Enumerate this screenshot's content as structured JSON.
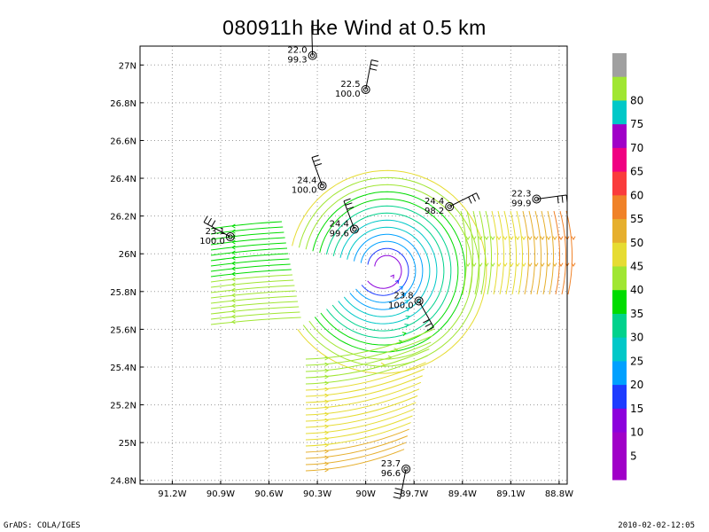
{
  "title": "080911h Ike Wind at 0.5 km",
  "footer": {
    "left": "GrADS: COLA/IGES",
    "right": "2010-02-02-12:05"
  },
  "map": {
    "lon_range": [
      -91.4,
      -88.75
    ],
    "lat_range": [
      24.78,
      27.1
    ],
    "x_ticks": [
      {
        "lon": -91.2,
        "label": "91.2W"
      },
      {
        "lon": -90.9,
        "label": "90.9W"
      },
      {
        "lon": -90.6,
        "label": "90.6W"
      },
      {
        "lon": -90.3,
        "label": "90.3W"
      },
      {
        "lon": -90.0,
        "label": "90W"
      },
      {
        "lon": -89.7,
        "label": "89.7W"
      },
      {
        "lon": -89.4,
        "label": "89.4W"
      },
      {
        "lon": -89.1,
        "label": "89.1W"
      },
      {
        "lon": -88.8,
        "label": "88.8W"
      }
    ],
    "y_ticks": [
      {
        "lat": 27.0,
        "label": "27N"
      },
      {
        "lat": 26.8,
        "label": "26.8N"
      },
      {
        "lat": 26.6,
        "label": "26.6N"
      },
      {
        "lat": 26.4,
        "label": "26.4N"
      },
      {
        "lat": 26.2,
        "label": "26.2N"
      },
      {
        "lat": 26.0,
        "label": "26N"
      },
      {
        "lat": 25.8,
        "label": "25.8N"
      },
      {
        "lat": 25.6,
        "label": "25.6N"
      },
      {
        "lat": 25.4,
        "label": "25.4N"
      },
      {
        "lat": 25.2,
        "label": "25.2N"
      },
      {
        "lat": 25.0,
        "label": "25N"
      },
      {
        "lat": 24.8,
        "label": "24.8N"
      }
    ],
    "storm_center": {
      "lon": -89.88,
      "lat": 25.92
    },
    "stations": [
      {
        "lon": -90.33,
        "lat": 27.05,
        "temp": "22.0",
        "pres": "99.3"
      },
      {
        "lon": -90.0,
        "lat": 26.87,
        "temp": "22.5",
        "pres": "100.0"
      },
      {
        "lon": -90.27,
        "lat": 26.36,
        "temp": "24.4",
        "pres": "100.0"
      },
      {
        "lon": -90.07,
        "lat": 26.13,
        "temp": "24.4",
        "pres": "99.6"
      },
      {
        "lon": -89.48,
        "lat": 26.25,
        "temp": "24.4",
        "pres": "98.2"
      },
      {
        "lon": -88.94,
        "lat": 26.29,
        "temp": "22.3",
        "pres": "99.9"
      },
      {
        "lon": -90.84,
        "lat": 26.09,
        "temp": "23.1",
        "pres": "100.0"
      },
      {
        "lon": -89.67,
        "lat": 25.75,
        "temp": "23.8",
        "pres": "100.0"
      },
      {
        "lon": -89.75,
        "lat": 24.86,
        "temp": "23.7",
        "pres": "96.6"
      }
    ]
  },
  "colorbar": {
    "levels": [
      {
        "label": "",
        "color": "#a0a0a0"
      },
      {
        "label": "80",
        "color": "#a0e632"
      },
      {
        "label": "75",
        "color": "#00c8c8"
      },
      {
        "label": "70",
        "color": "#a000c8"
      },
      {
        "label": "65",
        "color": "#f00082"
      },
      {
        "label": "60",
        "color": "#fa3c3c"
      },
      {
        "label": "55",
        "color": "#f08228"
      },
      {
        "label": "50",
        "color": "#e6af2d"
      },
      {
        "label": "45",
        "color": "#e6dc32"
      },
      {
        "label": "40",
        "color": "#a0e632"
      },
      {
        "label": "35",
        "color": "#00dc00"
      },
      {
        "label": "30",
        "color": "#00d28c"
      },
      {
        "label": "25",
        "color": "#00c8c8"
      },
      {
        "label": "20",
        "color": "#00a0ff"
      },
      {
        "label": "15",
        "color": "#1e3cff"
      },
      {
        "label": "10",
        "color": "#8c00dc"
      },
      {
        "label": "5",
        "color": "#a000c8"
      },
      {
        "label": "",
        "color": "#a000c8"
      }
    ]
  }
}
